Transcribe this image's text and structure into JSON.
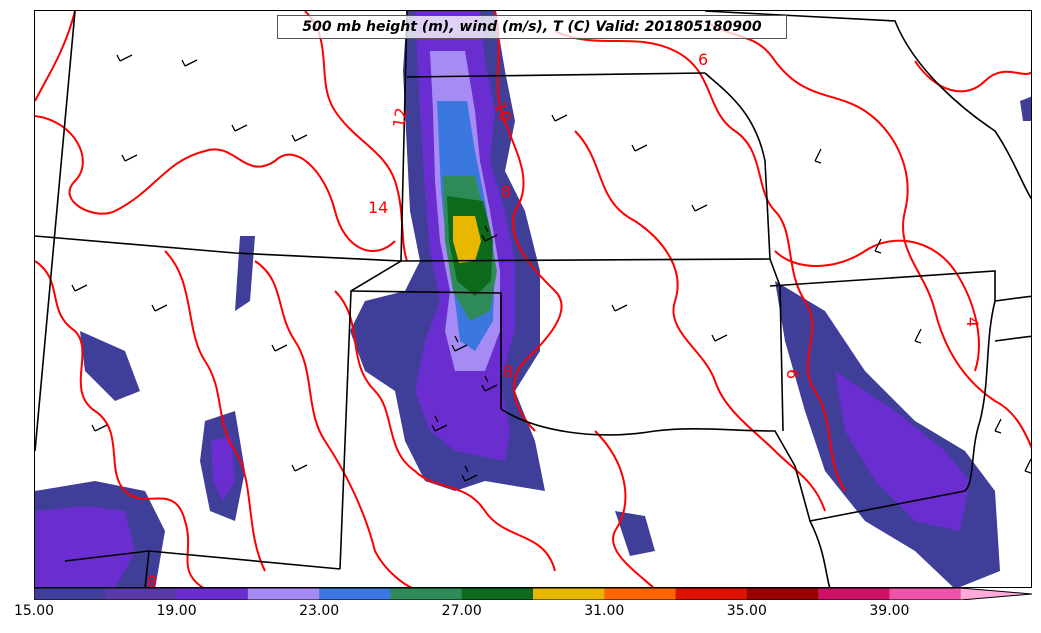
{
  "title": "500 mb height (m), wind (m/s), T (C) Valid: 201805180900",
  "colors": {
    "temp_contour": "#ff0000",
    "state_border": "#000000",
    "wind_barb": "#000000"
  },
  "contour_labels": [
    "12",
    "10",
    "14",
    "8",
    "8",
    "6",
    "6",
    "4",
    "8"
  ],
  "colorbar": {
    "tick_labels": [
      "15.00",
      "19.00",
      "23.00",
      "27.00",
      "31.00",
      "35.00",
      "39.00"
    ],
    "bins": [
      {
        "min": 15,
        "max": 17,
        "color": "#3f3f9a"
      },
      {
        "min": 17,
        "max": 19,
        "color": "#5a3aa6"
      },
      {
        "min": 19,
        "max": 21,
        "color": "#6a2dd0"
      },
      {
        "min": 21,
        "max": 23,
        "color": "#a78bf5"
      },
      {
        "min": 23,
        "max": 25,
        "color": "#3a78e0"
      },
      {
        "min": 25,
        "max": 27,
        "color": "#2e8b57"
      },
      {
        "min": 27,
        "max": 29,
        "color": "#0b6b1a"
      },
      {
        "min": 29,
        "max": 31,
        "color": "#e8b800"
      },
      {
        "min": 31,
        "max": 33,
        "color": "#ff6600"
      },
      {
        "min": 33,
        "max": 35,
        "color": "#dd1100"
      },
      {
        "min": 35,
        "max": 37,
        "color": "#990000"
      },
      {
        "min": 37,
        "max": 39,
        "color": "#cc1166"
      },
      {
        "min": 39,
        "max": 41,
        "color": "#ee55aa"
      },
      {
        "min": 41,
        "max": 43,
        "color": "#ffaad8"
      }
    ]
  }
}
